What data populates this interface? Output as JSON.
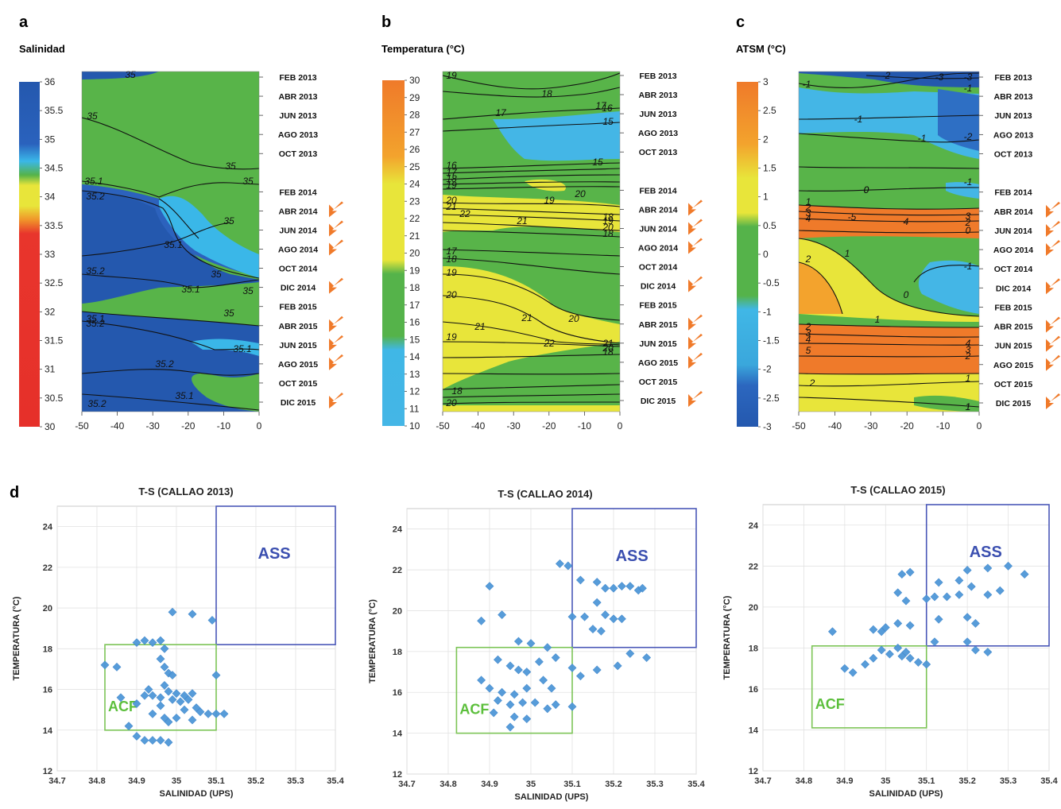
{
  "panels": {
    "a": {
      "letter": "a",
      "title": "Salinidad"
    },
    "b": {
      "letter": "b",
      "title": "Temperatura (°C)"
    },
    "c": {
      "letter": "c",
      "title": "ATSM (°C)"
    },
    "d": {
      "letter": "d"
    }
  },
  "colorbars": {
    "a": {
      "labels": [
        "36",
        "35.5",
        "35",
        "34.5",
        "34",
        "33.5",
        "33",
        "32.5",
        "32",
        "31.5",
        "31",
        "30.5",
        "30"
      ],
      "colors": [
        "#2457b0",
        "#2f66c0",
        "#44b4e6",
        "#58b449",
        "#e8e53a",
        "#f0b02a",
        "#ef7a2a",
        "#e8352c",
        "#e63028"
      ]
    },
    "b": {
      "labels": [
        "30",
        "29",
        "28",
        "27",
        "26",
        "25",
        "24",
        "23",
        "22",
        "21",
        "20",
        "19",
        "18",
        "17",
        "16",
        "15",
        "14",
        "13",
        "12",
        "11",
        "10"
      ],
      "colors": [
        "#ef7a2a",
        "#f6a02c",
        "#e8e53a",
        "#58b449",
        "#44b4e6"
      ]
    },
    "c": {
      "labels": [
        "3",
        "2.5",
        "2",
        "1.5",
        "1",
        "0.5",
        "0",
        "-0.5",
        "-1",
        "-1.5",
        "-2",
        "-2.5",
        "-3"
      ],
      "colors": [
        "#ef7a2a",
        "#e8e53a",
        "#58b449",
        "#44b4e6",
        "#2457b0"
      ]
    }
  },
  "x_ticks": [
    "-50",
    "-40",
    "-30",
    "-20",
    "-10",
    "0"
  ],
  "dates": [
    "FEB 2013",
    "ABR 2013",
    "JUN 2013",
    "AGO 2013",
    "OCT 2013",
    "FEB 2014",
    "ABR 2014",
    "JUN 2014",
    "AGO 2014",
    "OCT 2014",
    "DIC 2014",
    "FEB 2015",
    "ABR 2015",
    "JUN 2015",
    "AGO 2015",
    "OCT 2015",
    "DIC 2015"
  ],
  "arrow_dates": [
    "ABR 2014",
    "JUN 2014",
    "AGO 2014",
    "DIC 2014",
    "ABR 2015",
    "JUN 2015",
    "AGO 2015",
    "DIC 2015"
  ],
  "contour_labels": {
    "a": [
      "35",
      "35",
      "35",
      "35",
      "35.1",
      "35.2",
      "35",
      "35.1",
      "35.2",
      "35",
      "35.1",
      "35",
      "35",
      "35.1",
      "35.2",
      "35.1",
      "35.2",
      "35.1",
      "35.2"
    ],
    "b": [
      "19",
      "18",
      "17",
      "17",
      "16",
      "15",
      "15",
      "16",
      "17",
      "18",
      "19",
      "20",
      "21",
      "22",
      "19",
      "21",
      "20",
      "18",
      "19",
      "20",
      "18",
      "17",
      "18",
      "19",
      "20",
      "21",
      "21",
      "20",
      "19",
      "22",
      "21",
      "20",
      "18",
      "18",
      "20"
    ],
    "c": [
      "-1",
      "-2",
      "-3",
      "-3",
      "-1",
      "-1",
      "-2",
      "-1",
      "0",
      "-1",
      "0",
      "1",
      "2",
      "3",
      "4",
      "-5",
      "4",
      "3",
      "2",
      "0",
      "2",
      "1",
      "0",
      "-1",
      "1",
      "2",
      "3",
      "4",
      "5",
      "4",
      "3",
      "2",
      "1",
      "2",
      "1",
      "1"
    ]
  },
  "ts": {
    "x_ticks": [
      "34.7",
      "34.8",
      "34.9",
      "35",
      "35.1",
      "35.2",
      "35.3",
      "35.4"
    ],
    "y_ticks": [
      "12",
      "14",
      "16",
      "18",
      "20",
      "22",
      "24"
    ],
    "xlabel": "SALINIDAD (UPS)",
    "ylabel": "TEMPERATURA (°C)",
    "box_ass": "ASS",
    "box_acf": "ACF"
  },
  "chart_data": [
    {
      "type": "heatmap",
      "title": "Salinidad",
      "xlabel": "",
      "ylabel": "",
      "x_range": [
        -50,
        0
      ],
      "colorbar_range": [
        30,
        36
      ],
      "y_categories": [
        "FEB 2013",
        "DIC 2015"
      ],
      "note": ""
    },
    {
      "type": "heatmap",
      "title": "Temperatura (°C)",
      "x_range": [
        -50,
        0
      ],
      "colorbar_range": [
        10,
        30
      ]
    },
    {
      "type": "heatmap",
      "title": "ATSM (°C)",
      "x_range": [
        -50,
        0
      ],
      "colorbar_range": [
        -3,
        3
      ]
    },
    {
      "type": "scatter",
      "title": "T-S (CALLAO 2013)",
      "xlabel": "SALINIDAD (UPS)",
      "ylabel": "TEMPERATURA (°C)",
      "xlim": [
        34.7,
        35.4
      ],
      "ylim": [
        12,
        25
      ],
      "boxes": [
        {
          "name": "ASS",
          "x": [
            35.1,
            35.4
          ],
          "y": [
            18.2,
            25
          ]
        },
        {
          "name": "ACF",
          "x": [
            34.82,
            35.1
          ],
          "y": [
            14,
            18.2
          ]
        }
      ],
      "points": [
        [
          34.82,
          17.2
        ],
        [
          34.85,
          17.1
        ],
        [
          34.9,
          18.3
        ],
        [
          34.92,
          18.4
        ],
        [
          34.94,
          18.3
        ],
        [
          34.96,
          18.4
        ],
        [
          34.97,
          18.0
        ],
        [
          34.99,
          19.8
        ],
        [
          35.04,
          19.7
        ],
        [
          35.09,
          19.4
        ],
        [
          34.96,
          17.5
        ],
        [
          34.97,
          17.1
        ],
        [
          34.98,
          16.8
        ],
        [
          34.99,
          16.7
        ],
        [
          34.97,
          16.2
        ],
        [
          34.93,
          16.0
        ],
        [
          34.98,
          15.9
        ],
        [
          35.0,
          15.8
        ],
        [
          35.02,
          15.7
        ],
        [
          35.04,
          15.8
        ],
        [
          34.99,
          15.5
        ],
        [
          35.01,
          15.4
        ],
        [
          35.03,
          15.5
        ],
        [
          34.92,
          15.7
        ],
        [
          34.94,
          15.7
        ],
        [
          34.96,
          15.6
        ],
        [
          34.86,
          15.6
        ],
        [
          34.9,
          15.3
        ],
        [
          34.96,
          15.2
        ],
        [
          35.02,
          15.0
        ],
        [
          35.05,
          15.1
        ],
        [
          35.06,
          14.9
        ],
        [
          35.1,
          16.7
        ],
        [
          35.08,
          14.8
        ],
        [
          35.1,
          14.8
        ],
        [
          35.12,
          14.8
        ],
        [
          34.94,
          14.8
        ],
        [
          34.97,
          14.6
        ],
        [
          34.98,
          14.4
        ],
        [
          35.0,
          14.6
        ],
        [
          35.04,
          14.5
        ],
        [
          34.88,
          14.2
        ],
        [
          34.9,
          13.7
        ],
        [
          34.92,
          13.5
        ],
        [
          34.94,
          13.5
        ],
        [
          34.96,
          13.5
        ],
        [
          34.98,
          13.4
        ]
      ]
    },
    {
      "type": "scatter",
      "title": "T-S (CALLAO 2014)",
      "xlabel": "SALINIDAD (UPS)",
      "ylabel": "TEMPERATURA (°C)",
      "xlim": [
        34.7,
        35.4
      ],
      "ylim": [
        12,
        25
      ],
      "boxes": [
        {
          "name": "ASS",
          "x": [
            35.1,
            35.4
          ],
          "y": [
            18.2,
            25
          ]
        },
        {
          "name": "ACF",
          "x": [
            34.82,
            35.1
          ],
          "y": [
            14,
            18.2
          ]
        }
      ],
      "points": [
        [
          35.07,
          22.3
        ],
        [
          35.09,
          22.2
        ],
        [
          34.9,
          21.2
        ],
        [
          35.12,
          21.5
        ],
        [
          35.16,
          21.4
        ],
        [
          35.18,
          21.1
        ],
        [
          35.2,
          21.1
        ],
        [
          35.22,
          21.2
        ],
        [
          35.24,
          21.2
        ],
        [
          35.26,
          21.0
        ],
        [
          35.27,
          21.1
        ],
        [
          34.88,
          19.5
        ],
        [
          34.93,
          19.8
        ],
        [
          35.1,
          19.7
        ],
        [
          35.13,
          19.7
        ],
        [
          35.16,
          20.4
        ],
        [
          35.18,
          19.8
        ],
        [
          35.2,
          19.6
        ],
        [
          35.22,
          19.6
        ],
        [
          35.15,
          19.1
        ],
        [
          35.17,
          19.0
        ],
        [
          34.97,
          18.5
        ],
        [
          35.0,
          18.4
        ],
        [
          35.04,
          18.2
        ],
        [
          35.06,
          17.7
        ],
        [
          35.1,
          17.2
        ],
        [
          35.21,
          17.3
        ],
        [
          35.24,
          17.9
        ],
        [
          35.28,
          17.7
        ],
        [
          35.12,
          16.8
        ],
        [
          35.16,
          17.1
        ],
        [
          34.92,
          17.6
        ],
        [
          34.95,
          17.3
        ],
        [
          34.97,
          17.1
        ],
        [
          34.99,
          17.0
        ],
        [
          35.02,
          17.5
        ],
        [
          34.88,
          16.6
        ],
        [
          34.9,
          16.2
        ],
        [
          34.93,
          16.0
        ],
        [
          34.96,
          15.9
        ],
        [
          34.99,
          16.2
        ],
        [
          35.03,
          16.6
        ],
        [
          35.05,
          16.2
        ],
        [
          34.92,
          15.6
        ],
        [
          34.95,
          15.4
        ],
        [
          34.98,
          15.5
        ],
        [
          35.01,
          15.5
        ],
        [
          35.04,
          15.2
        ],
        [
          35.06,
          15.4
        ],
        [
          35.1,
          15.3
        ],
        [
          34.96,
          14.8
        ],
        [
          34.99,
          14.7
        ],
        [
          34.95,
          14.3
        ],
        [
          34.91,
          15.0
        ]
      ]
    },
    {
      "type": "scatter",
      "title": "T-S (CALLAO 2015)",
      "xlabel": "SALINIDAD (UPS)",
      "ylabel": "TEMPERATURA (°C)",
      "xlim": [
        34.7,
        35.4
      ],
      "ylim": [
        12,
        25
      ],
      "boxes": [
        {
          "name": "ASS",
          "x": [
            35.1,
            35.4
          ],
          "y": [
            18.1,
            25
          ]
        },
        {
          "name": "ACF",
          "x": [
            34.82,
            35.1
          ],
          "y": [
            14.1,
            18.1
          ]
        }
      ],
      "points": [
        [
          35.04,
          21.6
        ],
        [
          35.06,
          21.7
        ],
        [
          35.2,
          21.8
        ],
        [
          35.25,
          21.9
        ],
        [
          35.3,
          22.0
        ],
        [
          35.34,
          21.6
        ],
        [
          35.13,
          21.2
        ],
        [
          35.18,
          21.3
        ],
        [
          35.21,
          21.0
        ],
        [
          35.28,
          20.8
        ],
        [
          35.25,
          20.6
        ],
        [
          35.03,
          20.7
        ],
        [
          35.05,
          20.3
        ],
        [
          35.1,
          20.4
        ],
        [
          35.12,
          20.5
        ],
        [
          35.15,
          20.5
        ],
        [
          35.18,
          20.6
        ],
        [
          35.13,
          19.4
        ],
        [
          35.2,
          19.5
        ],
        [
          35.22,
          19.2
        ],
        [
          35.0,
          19.0
        ],
        [
          35.03,
          19.2
        ],
        [
          35.06,
          19.1
        ],
        [
          34.97,
          18.9
        ],
        [
          34.99,
          18.8
        ],
        [
          34.87,
          18.8
        ],
        [
          35.2,
          18.3
        ],
        [
          35.22,
          17.9
        ],
        [
          35.25,
          17.8
        ],
        [
          35.12,
          18.3
        ],
        [
          35.03,
          18.0
        ],
        [
          35.05,
          17.8
        ],
        [
          34.99,
          17.9
        ],
        [
          35.01,
          17.7
        ],
        [
          35.04,
          17.6
        ],
        [
          35.06,
          17.5
        ],
        [
          35.08,
          17.3
        ],
        [
          35.1,
          17.2
        ],
        [
          34.97,
          17.5
        ],
        [
          34.95,
          17.2
        ],
        [
          34.9,
          17.0
        ],
        [
          34.92,
          16.8
        ]
      ]
    }
  ]
}
